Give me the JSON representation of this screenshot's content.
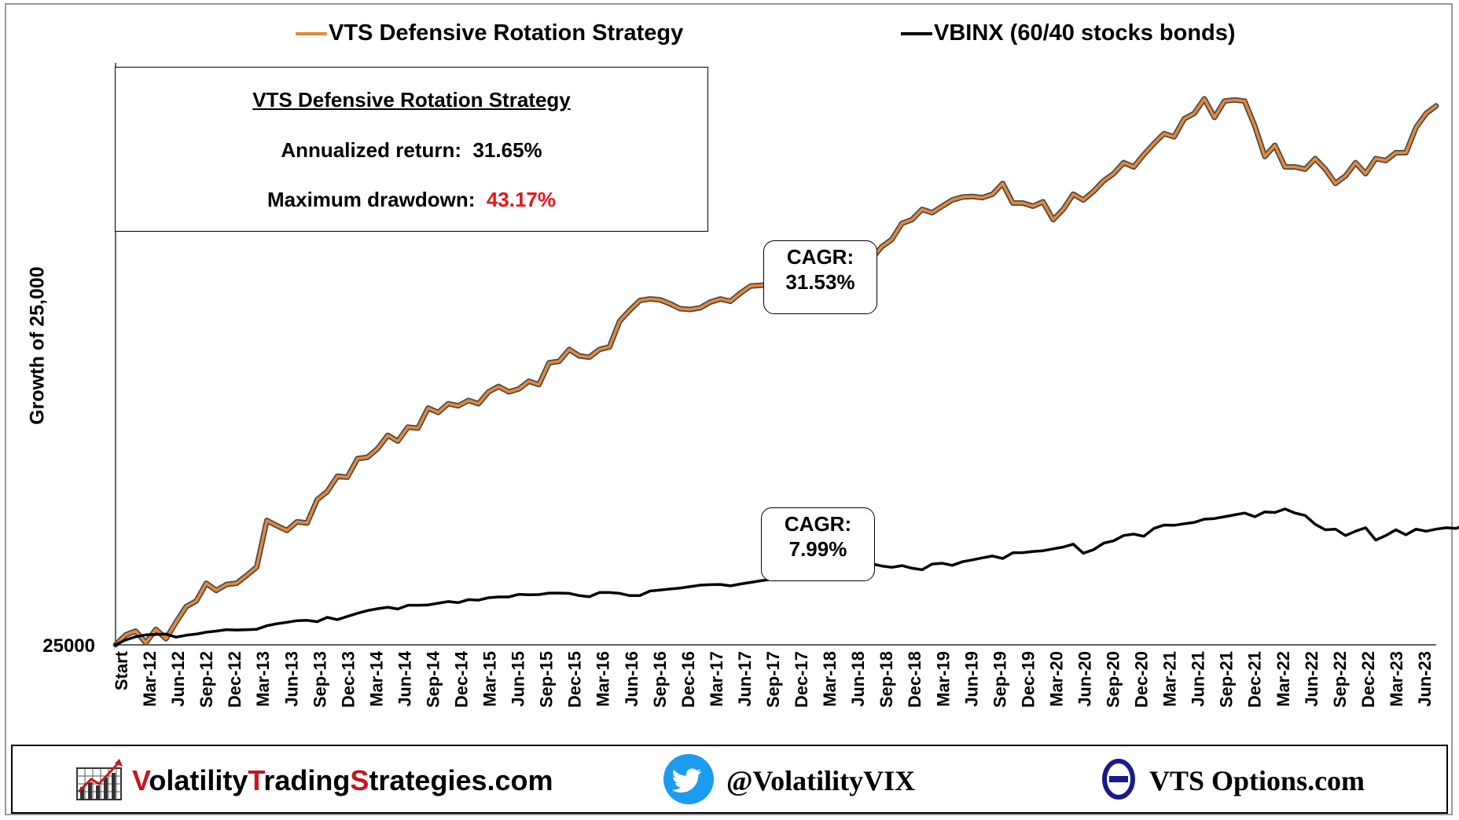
{
  "chart_data": {
    "type": "line",
    "ylabel": "Growth of 25,000",
    "y_tick_label": "25000",
    "y_scale": "log",
    "x_tick_labels": [
      "Start",
      "Mar-12",
      "Jun-12",
      "Sep-12",
      "Dec-12",
      "Mar-13",
      "Jun-13",
      "Sep-13",
      "Dec-13",
      "Mar-14",
      "Jun-14",
      "Sep-14",
      "Dec-14",
      "Mar-15",
      "Jun-15",
      "Sep-15",
      "Dec-15",
      "Mar-16",
      "Jun-16",
      "Sep-16",
      "Dec-16",
      "Mar-17",
      "Jun-17",
      "Sep-17",
      "Dec-17",
      "Mar-18",
      "Jun-18",
      "Sep-18",
      "Dec-18",
      "Mar-19",
      "Jun-19",
      "Sep-19",
      "Dec-19",
      "Mar-20",
      "Jun-20",
      "Sep-20",
      "Dec-20",
      "Mar-21",
      "Jun-21",
      "Sep-21",
      "Dec-21",
      "Mar-22",
      "Jun-22",
      "Sep-22",
      "Dec-22",
      "Mar-23",
      "Jun-23"
    ],
    "legend_position": "top",
    "series": [
      {
        "name": "VTS Defensive Rotation Strategy",
        "color": "#e8883a",
        "values": [
          25000,
          27500,
          28500,
          25500,
          29000,
          26500,
          31000,
          36000,
          38000,
          45000,
          42000,
          44500,
          45000,
          48500,
          52500,
          82000,
          78000,
          74500,
          81000,
          80000,
          100000,
          108000,
          125000,
          124000,
          148000,
          150000,
          163000,
          185000,
          175000,
          200000,
          198000,
          240000,
          230000,
          250000,
          245000,
          258000,
          250000,
          280000,
          295000,
          280000,
          288000,
          310000,
          300000,
          370000,
          375000,
          420000,
          395000,
          390000,
          420000,
          430000,
          550000,
          610000,
          670000,
          680000,
          675000,
          650000,
          620000,
          615000,
          625000,
          660000,
          680000,
          665000,
          720000,
          770000,
          775000,
          780000,
          785000,
          795000,
          905000,
          900000,
          880000,
          950000,
          1050000,
          1000000,
          1030000,
          1000000,
          1120000,
          1200000,
          1400000,
          1450000,
          1600000,
          1550000,
          1650000,
          1750000,
          1800000,
          1810000,
          1790000,
          1850000,
          2050000,
          1700000,
          1700000,
          1650000,
          1720000,
          1450000,
          1600000,
          1850000,
          1750000,
          1900000,
          2100000,
          2250000,
          2500000,
          2400000,
          2700000,
          3000000,
          3300000,
          3200000,
          3800000,
          4000000,
          4600000,
          3850000,
          4500000,
          4550000,
          4500000,
          3550000,
          2650000,
          2950000,
          2400000,
          2400000,
          2350000,
          2600000,
          2350000,
          2050000,
          2200000,
          2500000,
          2250000,
          2600000,
          2550000,
          2750000,
          2750000,
          3500000,
          4000000,
          4300000
        ]
      },
      {
        "name": "VBINX  (60/40 stocks bonds)",
        "color": "#000000",
        "values": [
          25000,
          26200,
          27000,
          27500,
          27600,
          27700,
          26900,
          27400,
          27700,
          28200,
          28500,
          28900,
          28800,
          28900,
          29000,
          30000,
          30600,
          31000,
          31500,
          31600,
          31200,
          32500,
          31800,
          32800,
          33800,
          34700,
          35300,
          35800,
          35200,
          36500,
          36500,
          36600,
          37200,
          37800,
          37400,
          38500,
          38300,
          39200,
          39500,
          39500,
          40500,
          40300,
          40400,
          41000,
          41000,
          40900,
          40000,
          39600,
          41200,
          41200,
          40900,
          40000,
          40000,
          41800,
          42200,
          42600,
          43000,
          43600,
          44200,
          44400,
          44500,
          43900,
          44700,
          45400,
          46100,
          46700,
          48300,
          48300,
          48500,
          49300,
          49700,
          49800,
          50600,
          51200,
          54500,
          54200,
          53100,
          52400,
          53300,
          52000,
          51200,
          54100,
          54500,
          53400,
          55300,
          56300,
          57400,
          58400,
          57000,
          60200,
          60300,
          61000,
          61400,
          62500,
          63600,
          65400,
          60000,
          62000,
          66000,
          67500,
          71000,
          72000,
          70500,
          76000,
          78500,
          78300,
          79500,
          80500,
          83000,
          83500,
          85000,
          86500,
          88000,
          85000,
          89000,
          88500,
          91500,
          88000,
          86000,
          79000,
          75000,
          75500,
          71000,
          74000,
          76500,
          68000,
          71000,
          75000,
          71500,
          75500,
          74000,
          75500,
          76500,
          76000,
          79500,
          81000
        ]
      }
    ],
    "annotations": [
      {
        "line1": "CAGR:",
        "line2": "31.53%"
      },
      {
        "line1": "CAGR:",
        "line2": "7.99%"
      }
    ]
  },
  "stats_box": {
    "title": "VTS Defensive Rotation Strategy",
    "return_label": "Annualized return:",
    "return_value": "31.65%",
    "drawdown_label": "Maximum drawdown:",
    "drawdown_value": "43.17%",
    "drawdown_color": "#e8141a"
  },
  "footer": {
    "site_parts": [
      "V",
      "olatility",
      "T",
      "rading",
      "S",
      "trategies.com"
    ],
    "twitter_handle": "@VolatilityVIX",
    "vts_name": "VTS Options.com",
    "accent_red": "#c8151c",
    "twitter_color": "#1d9bf0",
    "vts_logo_color": "#1a1a8c"
  },
  "icons": [
    "bar-chart-logo-icon",
    "twitter-bird-icon",
    "theta-logo-icon"
  ]
}
